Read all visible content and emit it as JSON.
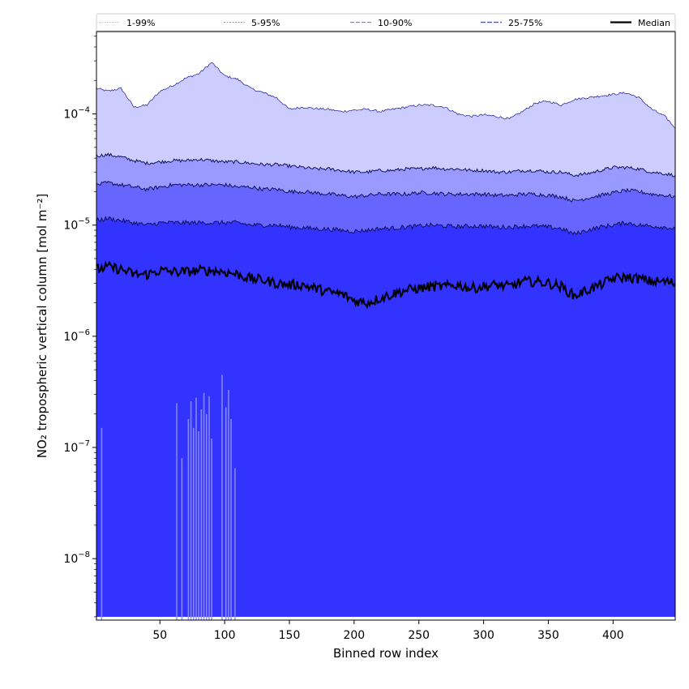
{
  "chart_data": {
    "type": "area",
    "xlabel": "Binned row index",
    "ylabel": "NO₂ tropospheric vertical column [mol m⁻²]",
    "xlim": [
      1,
      448
    ],
    "ylim": [
      2.8e-09,
      0.00055
    ],
    "y_scale": "log",
    "grid": false,
    "legend_position": "top",
    "x_ticks": [
      50,
      100,
      150,
      200,
      250,
      300,
      350,
      400
    ],
    "x_tick_labels": [
      "50",
      "100",
      "150",
      "200",
      "250",
      "300",
      "350",
      "400"
    ],
    "y_ticks": [
      1e-08,
      1e-07,
      1e-06,
      1e-05,
      0.0001
    ],
    "y_tick_labels": [
      {
        "base": "10",
        "exp": "−8"
      },
      {
        "base": "10",
        "exp": "−7"
      },
      {
        "base": "10",
        "exp": "−6"
      },
      {
        "base": "10",
        "exp": "−5"
      },
      {
        "base": "10",
        "exp": "−4"
      }
    ],
    "x": [
      1,
      10,
      20,
      30,
      40,
      50,
      60,
      70,
      80,
      90,
      100,
      110,
      120,
      130,
      140,
      150,
      160,
      170,
      180,
      190,
      200,
      210,
      220,
      230,
      240,
      250,
      260,
      270,
      280,
      290,
      300,
      310,
      320,
      330,
      340,
      350,
      360,
      370,
      380,
      390,
      400,
      410,
      420,
      430,
      440,
      448
    ],
    "series": [
      {
        "name": "1-99%",
        "color": "#ccccff",
        "upper": [
          0.00017,
          0.00016,
          0.00017,
          0.000115,
          0.00012,
          0.00016,
          0.00018,
          0.00021,
          0.00023,
          0.00029,
          0.00022,
          0.000205,
          0.00017,
          0.000155,
          0.00014,
          0.00011,
          0.000115,
          0.000112,
          0.00011,
          0.000105,
          0.000108,
          0.00011,
          0.000105,
          0.00011,
          0.000115,
          0.00012,
          0.00012,
          0.000115,
          0.0001,
          9.5e-05,
          9.8e-05,
          9.5e-05,
          9e-05,
          0.000105,
          0.000125,
          0.00013,
          0.00012,
          0.000135,
          0.00014,
          0.000145,
          0.00015,
          0.000155,
          0.00014,
          0.00011,
          9.5e-05,
          7.5e-05
        ],
        "lower": [
          3e-09,
          3e-09,
          3e-09,
          3e-09,
          3e-09,
          3e-09,
          3e-09,
          3e-09,
          3e-09,
          3e-09,
          3e-09,
          3e-09,
          3e-09,
          3e-09,
          3e-09,
          3e-09,
          3e-09,
          3e-09,
          3e-09,
          3e-09,
          3e-09,
          3e-09,
          3e-09,
          3e-09,
          3e-09,
          3e-09,
          3e-09,
          3e-09,
          3e-09,
          3e-09,
          3e-09,
          3e-09,
          3e-09,
          3e-09,
          3e-09,
          3e-09,
          3e-09,
          3e-09,
          3e-09,
          3e-09,
          3e-09,
          3e-09,
          3e-09,
          3e-09,
          3e-09,
          3e-09
        ]
      },
      {
        "name": "5-95%",
        "color": "#9999ff",
        "upper": [
          4.2e-05,
          4.3e-05,
          4.1e-05,
          3.8e-05,
          3.6e-05,
          3.7e-05,
          3.8e-05,
          3.8e-05,
          3.9e-05,
          3.8e-05,
          3.7e-05,
          3.7e-05,
          3.6e-05,
          3.5e-05,
          3.5e-05,
          3.4e-05,
          3.3e-05,
          3.2e-05,
          3.2e-05,
          3.1e-05,
          3e-05,
          3e-05,
          3.1e-05,
          3.1e-05,
          3.2e-05,
          3.2e-05,
          3.3e-05,
          3.2e-05,
          3.2e-05,
          3.1e-05,
          3.1e-05,
          3e-05,
          3e-05,
          3.1e-05,
          3.1e-05,
          3e-05,
          3e-05,
          2.8e-05,
          2.9e-05,
          3.1e-05,
          3.3e-05,
          3.3e-05,
          3.2e-05,
          3e-05,
          2.9e-05,
          2.8e-05
        ],
        "lower": [
          3e-09,
          3e-09,
          3e-09,
          3e-09,
          3e-09,
          3e-09,
          3e-09,
          3e-09,
          3e-09,
          3e-09,
          3e-09,
          3e-09,
          3e-09,
          3e-09,
          3e-09,
          3e-09,
          3e-09,
          3e-09,
          3e-09,
          3e-09,
          3e-09,
          3e-09,
          3e-09,
          3e-09,
          3e-09,
          3e-09,
          3e-09,
          3e-09,
          3e-09,
          3e-09,
          3e-09,
          3e-09,
          3e-09,
          3e-09,
          3e-09,
          3e-09,
          3e-09,
          3e-09,
          3e-09,
          3e-09,
          3e-09,
          3e-09,
          3e-09,
          3e-09,
          3e-09,
          3e-09
        ]
      },
      {
        "name": "10-90%",
        "color": "#6666ff",
        "upper": [
          2.3e-05,
          2.4e-05,
          2.3e-05,
          2.2e-05,
          2.1e-05,
          2.2e-05,
          2.3e-05,
          2.3e-05,
          2.3e-05,
          2.3e-05,
          2.3e-05,
          2.2e-05,
          2.2e-05,
          2.1e-05,
          2.1e-05,
          2e-05,
          2e-05,
          1.95e-05,
          1.9e-05,
          1.85e-05,
          1.8e-05,
          1.85e-05,
          1.9e-05,
          1.9e-05,
          1.9e-05,
          1.95e-05,
          1.95e-05,
          1.9e-05,
          1.9e-05,
          1.9e-05,
          1.9e-05,
          1.85e-05,
          1.85e-05,
          1.9e-05,
          1.9e-05,
          1.85e-05,
          1.8e-05,
          1.65e-05,
          1.75e-05,
          1.85e-05,
          1.95e-05,
          2.05e-05,
          2e-05,
          1.9e-05,
          1.85e-05,
          1.8e-05
        ],
        "lower": [
          3e-09,
          3e-09,
          3e-09,
          3e-09,
          3e-09,
          3e-09,
          3e-09,
          3e-09,
          3e-09,
          3e-09,
          3e-09,
          3e-09,
          3e-09,
          3e-09,
          3e-09,
          3e-09,
          3e-09,
          3e-09,
          3e-09,
          3e-09,
          3e-09,
          3e-09,
          3e-09,
          3e-09,
          3e-09,
          3e-09,
          3e-09,
          3e-09,
          3e-09,
          3e-09,
          3e-09,
          3e-09,
          3e-09,
          3e-09,
          3e-09,
          3e-09,
          3e-09,
          3e-09,
          3e-09,
          3e-09,
          3e-09,
          3e-09,
          3e-09,
          3e-09,
          3e-09,
          3e-09
        ]
      },
      {
        "name": "25-75%",
        "color": "#3333ff",
        "upper": [
          1.1e-05,
          1.15e-05,
          1.1e-05,
          1.05e-05,
          1e-05,
          1.05e-05,
          1.05e-05,
          1.05e-05,
          1.05e-05,
          1.05e-05,
          1.05e-05,
          1.05e-05,
          1e-05,
          1e-05,
          1e-05,
          9.6e-06,
          9.5e-06,
          9.3e-06,
          9.2e-06,
          9e-06,
          8.8e-06,
          9e-06,
          9.3e-06,
          9.4e-06,
          9.6e-06,
          9.8e-06,
          1e-05,
          9.8e-06,
          9.7e-06,
          9.8e-06,
          9.8e-06,
          9.6e-06,
          9.6e-06,
          9.8e-06,
          9.8e-06,
          9.6e-06,
          9.3e-06,
          8.3e-06,
          9e-06,
          9.6e-06,
          1e-05,
          1.05e-05,
          1e-05,
          9.8e-06,
          9.6e-06,
          9.3e-06
        ],
        "lower": [
          3e-09,
          3e-09,
          3e-09,
          3e-09,
          3e-09,
          3e-09,
          3e-09,
          3e-09,
          3e-09,
          3e-09,
          3e-09,
          3e-09,
          3e-09,
          3e-09,
          3e-09,
          3e-09,
          3e-09,
          3e-09,
          3e-09,
          3e-09,
          3e-09,
          3e-09,
          3e-09,
          3e-09,
          3e-09,
          3e-09,
          3e-09,
          3e-09,
          3e-09,
          3e-09,
          3e-09,
          3e-09,
          3e-09,
          3e-09,
          3e-09,
          3e-09,
          3e-09,
          3e-09,
          3e-09,
          3e-09,
          3e-09,
          3e-09,
          3e-09,
          3e-09,
          3e-09,
          3e-09
        ]
      },
      {
        "name": "Median",
        "color": "#000000",
        "values": [
          4e-06,
          4.2e-06,
          4e-06,
          3.6e-06,
          3.6e-06,
          3.9e-06,
          3.8e-06,
          3.8e-06,
          3.9e-06,
          3.9e-06,
          3.8e-06,
          3.6e-06,
          3.3e-06,
          3.2e-06,
          3e-06,
          2.9e-06,
          2.9e-06,
          2.7e-06,
          2.5e-06,
          2.4e-06,
          2.1e-06,
          2e-06,
          2.2e-06,
          2.4e-06,
          2.6e-06,
          2.7e-06,
          2.8e-06,
          2.8e-06,
          2.9e-06,
          2.7e-06,
          2.8e-06,
          2.9e-06,
          2.8e-06,
          3.1e-06,
          3.1e-06,
          3e-06,
          2.8e-06,
          2.3e-06,
          2.6e-06,
          2.9e-06,
          3.3e-06,
          3.4e-06,
          3.3e-06,
          3.1e-06,
          3.1e-06,
          3e-06
        ]
      }
    ],
    "low_spikes": [
      {
        "x": 5,
        "y": 1.5e-07
      },
      {
        "x": 63,
        "y": 2.5e-07
      },
      {
        "x": 67,
        "y": 8e-08
      },
      {
        "x": 72,
        "y": 1.8e-07
      },
      {
        "x": 74,
        "y": 2.6e-07
      },
      {
        "x": 76,
        "y": 1.5e-07
      },
      {
        "x": 78,
        "y": 2.8e-07
      },
      {
        "x": 80,
        "y": 1.4e-07
      },
      {
        "x": 82,
        "y": 2.2e-07
      },
      {
        "x": 84,
        "y": 3.1e-07
      },
      {
        "x": 86,
        "y": 2e-07
      },
      {
        "x": 88,
        "y": 2.9e-07
      },
      {
        "x": 90,
        "y": 1.2e-07
      },
      {
        "x": 98,
        "y": 4.5e-07
      },
      {
        "x": 101,
        "y": 2.3e-07
      },
      {
        "x": 103,
        "y": 3.3e-07
      },
      {
        "x": 105,
        "y": 1.8e-07
      },
      {
        "x": 108,
        "y": 6.5e-08
      }
    ]
  }
}
